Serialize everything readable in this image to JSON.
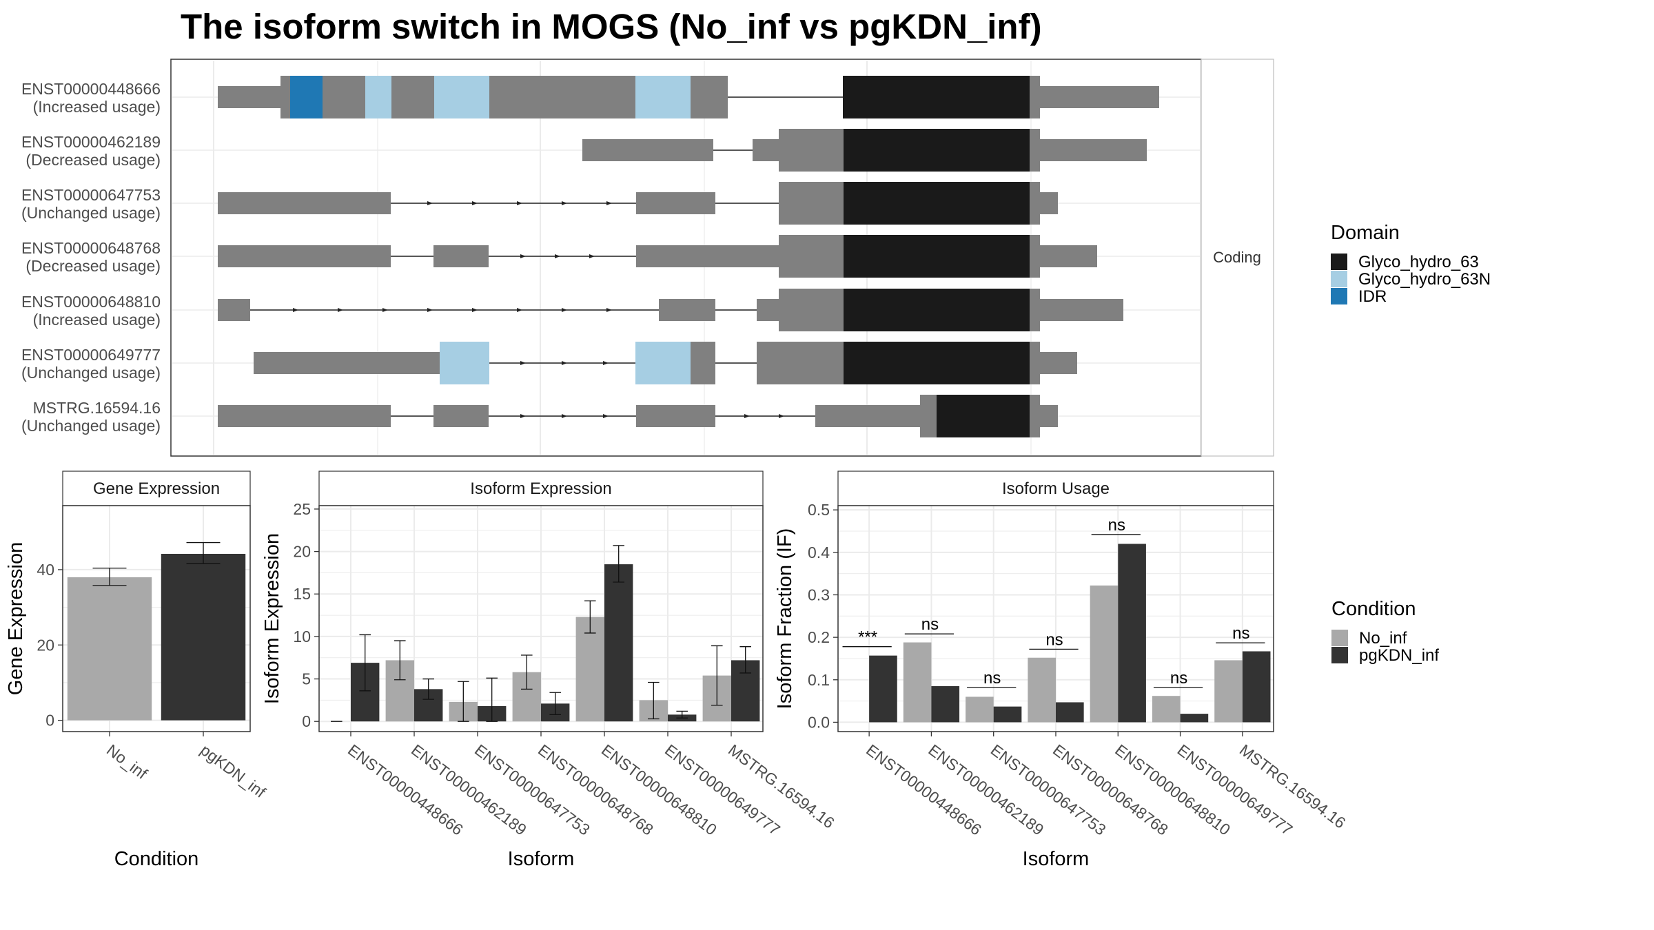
{
  "title": "The isoform switch in MOGS (No_inf vs pgKDN_inf)",
  "colors": {
    "exon": "#808080",
    "Glyco_hydro_63": "#1a1a1a",
    "Glyco_hydro_63N": "#a6cee3",
    "IDR": "#1f78b4",
    "No_inf": "#a9a9a9",
    "pgKDN_inf": "#333333",
    "panel_border": "#333333",
    "grid": "#ebebeb",
    "strip_bg": "#ffffff"
  },
  "structure": {
    "facet_label": "Coding",
    "isoforms": [
      {
        "id": "ENST00000448666",
        "usage": "(Increased usage)"
      },
      {
        "id": "ENST00000462189",
        "usage": "(Decreased usage)"
      },
      {
        "id": "ENST00000647753",
        "usage": "(Unchanged usage)"
      },
      {
        "id": "ENST00000648768",
        "usage": "(Decreased usage)"
      },
      {
        "id": "ENST00000648810",
        "usage": "(Increased usage)"
      },
      {
        "id": "ENST00000649777",
        "usage": "(Unchanged usage)"
      },
      {
        "id": "MSTRG.16594.16",
        "usage": "(Unchanged usage)"
      }
    ],
    "domain_legend": {
      "title": "Domain",
      "items": [
        "Glyco_hydro_63",
        "Glyco_hydro_63N",
        "IDR"
      ]
    }
  },
  "condition_legend": {
    "title": "Condition",
    "items": [
      "No_inf",
      "pgKDN_inf"
    ]
  },
  "chart_data": [
    {
      "type": "bar",
      "title": "Gene Expression",
      "xlabel": "Condition",
      "ylabel": "Gene Expression",
      "categories": [
        "No_inf",
        "pgKDN_inf"
      ],
      "values": [
        38,
        44.2
      ],
      "error_low": [
        35.8,
        41.6
      ],
      "error_high": [
        40.4,
        47.2
      ],
      "ylim": [
        -3,
        57
      ],
      "yticks": [
        0,
        20,
        40
      ]
    },
    {
      "type": "bar",
      "title": "Isoform Expression",
      "xlabel": "Isoform",
      "ylabel": "Isoform Expression",
      "categories": [
        "ENST00000448666",
        "ENST00000462189",
        "ENST00000647753",
        "ENST00000648768",
        "ENST00000648810",
        "ENST00000649777",
        "MSTRG.16594.16"
      ],
      "series": [
        {
          "name": "No_inf",
          "values": [
            0,
            7.2,
            2.3,
            5.8,
            12.3,
            2.5,
            5.4
          ],
          "error_low": [
            0,
            4.9,
            0,
            3.8,
            10.4,
            0.3,
            1.9
          ],
          "error_high": [
            0,
            9.5,
            4.7,
            7.8,
            14.2,
            4.6,
            8.9
          ]
        },
        {
          "name": "pgKDN_inf",
          "values": [
            6.9,
            3.8,
            1.8,
            2.1,
            18.5,
            0.8,
            7.2
          ],
          "error_low": [
            3.6,
            2.6,
            0,
            0.8,
            16.4,
            0.4,
            5.7
          ],
          "error_high": [
            10.2,
            5.0,
            5.1,
            3.4,
            20.7,
            1.2,
            8.8
          ]
        }
      ],
      "ylim": [
        -1.2,
        25.4
      ],
      "yticks": [
        0,
        5,
        10,
        15,
        20,
        25
      ]
    },
    {
      "type": "bar",
      "title": "Isoform Usage",
      "xlabel": "Isoform",
      "ylabel": "Isoform Fraction (IF)",
      "categories": [
        "ENST00000448666",
        "ENST00000462189",
        "ENST00000647753",
        "ENST00000648768",
        "ENST00000648810",
        "ENST00000649777",
        "MSTRG.16594.16"
      ],
      "series": [
        {
          "name": "No_inf",
          "values": [
            0.0,
            0.188,
            0.06,
            0.152,
            0.322,
            0.062,
            0.146
          ]
        },
        {
          "name": "pgKDN_inf",
          "values": [
            0.157,
            0.085,
            0.037,
            0.047,
            0.42,
            0.02,
            0.167
          ]
        }
      ],
      "significance": [
        "***",
        "ns",
        "ns",
        "ns",
        "ns",
        "ns",
        "ns"
      ],
      "sig_level": [
        0.178,
        0.208,
        0.082,
        0.172,
        0.442,
        0.082,
        0.187
      ],
      "ylim": [
        -0.022,
        0.51
      ],
      "yticks": [
        "0.0",
        "0.1",
        "0.2",
        "0.3",
        "0.4",
        "0.5"
      ]
    }
  ]
}
